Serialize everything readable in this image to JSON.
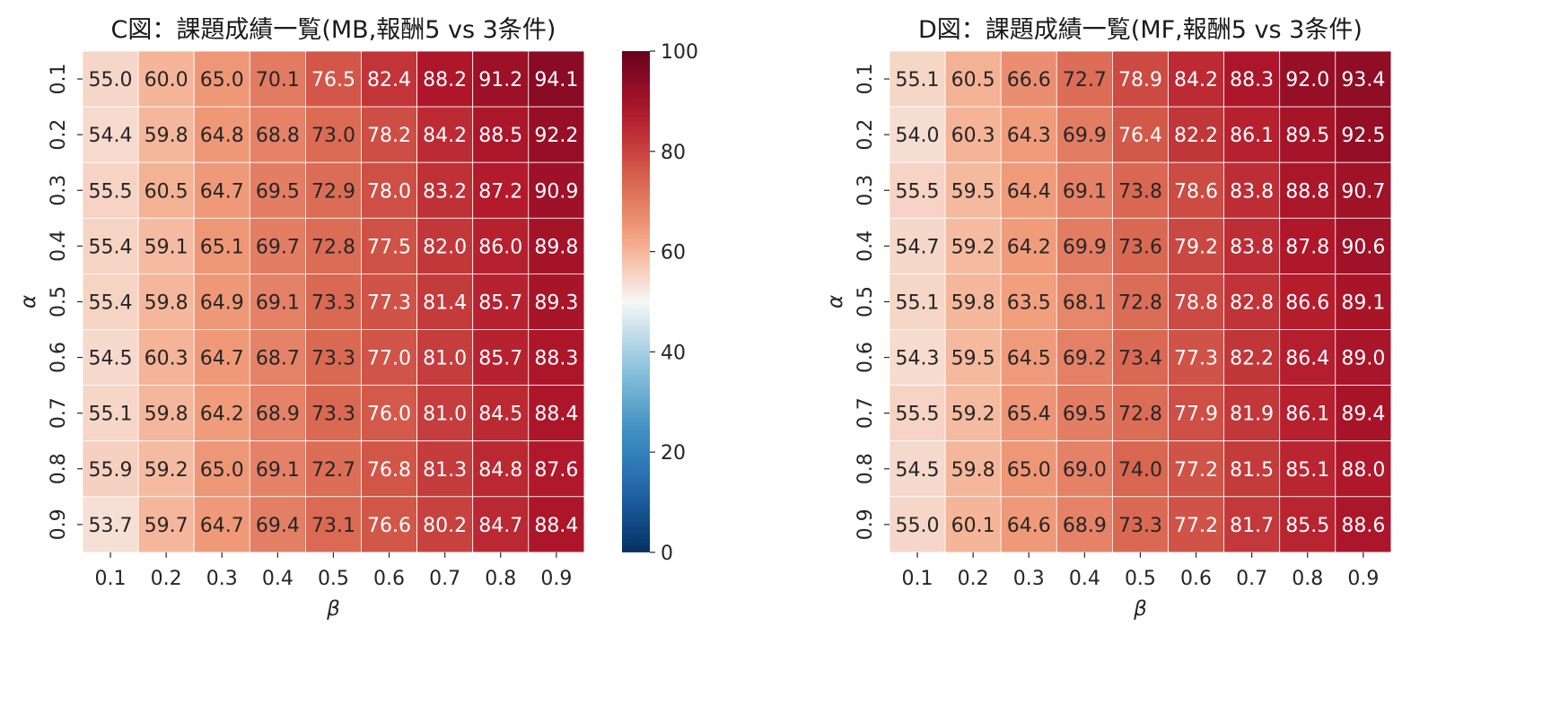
{
  "chart_data": [
    {
      "type": "heatmap",
      "title": "C図：課題成績一覧(MB,報酬5 vs 3条件)",
      "xlabel": "β",
      "ylabel": "α",
      "x_categories": [
        "0.1",
        "0.2",
        "0.3",
        "0.4",
        "0.5",
        "0.6",
        "0.7",
        "0.8",
        "0.9"
      ],
      "y_categories": [
        "0.1",
        "0.2",
        "0.3",
        "0.4",
        "0.5",
        "0.6",
        "0.7",
        "0.8",
        "0.9"
      ],
      "values": [
        [
          55.0,
          60.0,
          65.0,
          70.1,
          76.5,
          82.4,
          88.2,
          91.2,
          94.1
        ],
        [
          54.4,
          59.8,
          64.8,
          68.8,
          73.0,
          78.2,
          84.2,
          88.5,
          92.2
        ],
        [
          55.5,
          60.5,
          64.7,
          69.5,
          72.9,
          78.0,
          83.2,
          87.2,
          90.9
        ],
        [
          55.4,
          59.1,
          65.1,
          69.7,
          72.8,
          77.5,
          82.0,
          86.0,
          89.8
        ],
        [
          55.4,
          59.8,
          64.9,
          69.1,
          73.3,
          77.3,
          81.4,
          85.7,
          89.3
        ],
        [
          54.5,
          60.3,
          64.7,
          68.7,
          73.3,
          77.0,
          81.0,
          85.7,
          88.3
        ],
        [
          55.1,
          59.8,
          64.2,
          68.9,
          73.3,
          76.0,
          81.0,
          84.5,
          88.4
        ],
        [
          55.9,
          59.2,
          65.0,
          69.1,
          72.7,
          76.8,
          81.3,
          84.8,
          87.6
        ],
        [
          53.7,
          59.7,
          64.7,
          69.4,
          73.1,
          76.6,
          80.2,
          84.7,
          88.4
        ]
      ],
      "colorscale": "RdBu_r",
      "vmin": 0,
      "vmax": 100,
      "colorbar": {
        "ticks": [
          0,
          20,
          40,
          60,
          80,
          100
        ]
      }
    },
    {
      "type": "heatmap",
      "title": "D図：課題成績一覧(MF,報酬5 vs 3条件)",
      "xlabel": "β",
      "ylabel": "α",
      "x_categories": [
        "0.1",
        "0.2",
        "0.3",
        "0.4",
        "0.5",
        "0.6",
        "0.7",
        "0.8",
        "0.9"
      ],
      "y_categories": [
        "0.1",
        "0.2",
        "0.3",
        "0.4",
        "0.5",
        "0.6",
        "0.7",
        "0.8",
        "0.9"
      ],
      "values": [
        [
          55.1,
          60.5,
          66.6,
          72.7,
          78.9,
          84.2,
          88.3,
          92.0,
          93.4
        ],
        [
          54.0,
          60.3,
          64.3,
          69.9,
          76.4,
          82.2,
          86.1,
          89.5,
          92.5
        ],
        [
          55.5,
          59.5,
          64.4,
          69.1,
          73.8,
          78.6,
          83.8,
          88.8,
          90.7
        ],
        [
          54.7,
          59.2,
          64.2,
          69.9,
          73.6,
          79.2,
          83.8,
          87.8,
          90.6
        ],
        [
          55.1,
          59.8,
          63.5,
          68.1,
          72.8,
          78.8,
          82.8,
          86.6,
          89.1
        ],
        [
          54.3,
          59.5,
          64.5,
          69.2,
          73.4,
          77.3,
          82.2,
          86.4,
          89.0
        ],
        [
          55.5,
          59.2,
          65.4,
          69.5,
          72.8,
          77.9,
          81.9,
          86.1,
          89.4
        ],
        [
          54.5,
          59.8,
          65.0,
          69.0,
          74.0,
          77.2,
          81.5,
          85.1,
          88.0
        ],
        [
          55.0,
          60.1,
          64.6,
          68.9,
          73.3,
          77.2,
          81.7,
          85.5,
          88.6
        ]
      ],
      "colorscale": "RdBu_r",
      "vmin": 0,
      "vmax": 100
    }
  ]
}
